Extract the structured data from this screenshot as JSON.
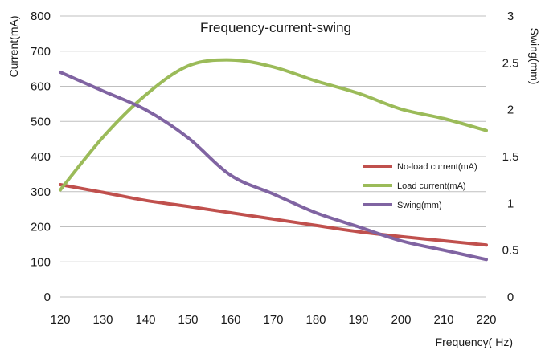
{
  "chart_data": {
    "type": "line",
    "title": "Frequency-current-swing",
    "xlabel": "Frequency( Hz)",
    "ylabel": "Current(mA)",
    "y2label": "Swing(mm)",
    "x": [
      120,
      130,
      140,
      150,
      160,
      170,
      180,
      190,
      200,
      210,
      220
    ],
    "xlim": [
      120,
      220
    ],
    "ylim": [
      0,
      800
    ],
    "y2lim": [
      0,
      3
    ],
    "xticks": [
      "120",
      "130",
      "140",
      "150",
      "160",
      "170",
      "180",
      "190",
      "200",
      "210",
      "220"
    ],
    "yticks": [
      "0",
      "100",
      "200",
      "300",
      "400",
      "500",
      "600",
      "700",
      "800"
    ],
    "y2ticks": [
      "0",
      "0.5",
      "1",
      "1.5",
      "2",
      "2.5",
      "3"
    ],
    "grid": "horizontal",
    "legend_position": "right",
    "series": [
      {
        "name": "No-load current(mA)",
        "axis": "left",
        "color": "#c0504d",
        "values": [
          320,
          298,
          275,
          258,
          240,
          222,
          204,
          186,
          172,
          160,
          148
        ]
      },
      {
        "name": "Load current(mA)",
        "axis": "left",
        "color": "#9bbb59",
        "values": [
          305,
          455,
          575,
          658,
          675,
          655,
          615,
          580,
          535,
          508,
          474
        ]
      },
      {
        "name": "Swing(mm)",
        "axis": "right",
        "color": "#8064a2",
        "values": [
          2.4,
          2.2,
          2.0,
          1.7,
          1.3,
          1.1,
          0.9,
          0.75,
          0.6,
          0.5,
          0.4
        ]
      }
    ]
  }
}
